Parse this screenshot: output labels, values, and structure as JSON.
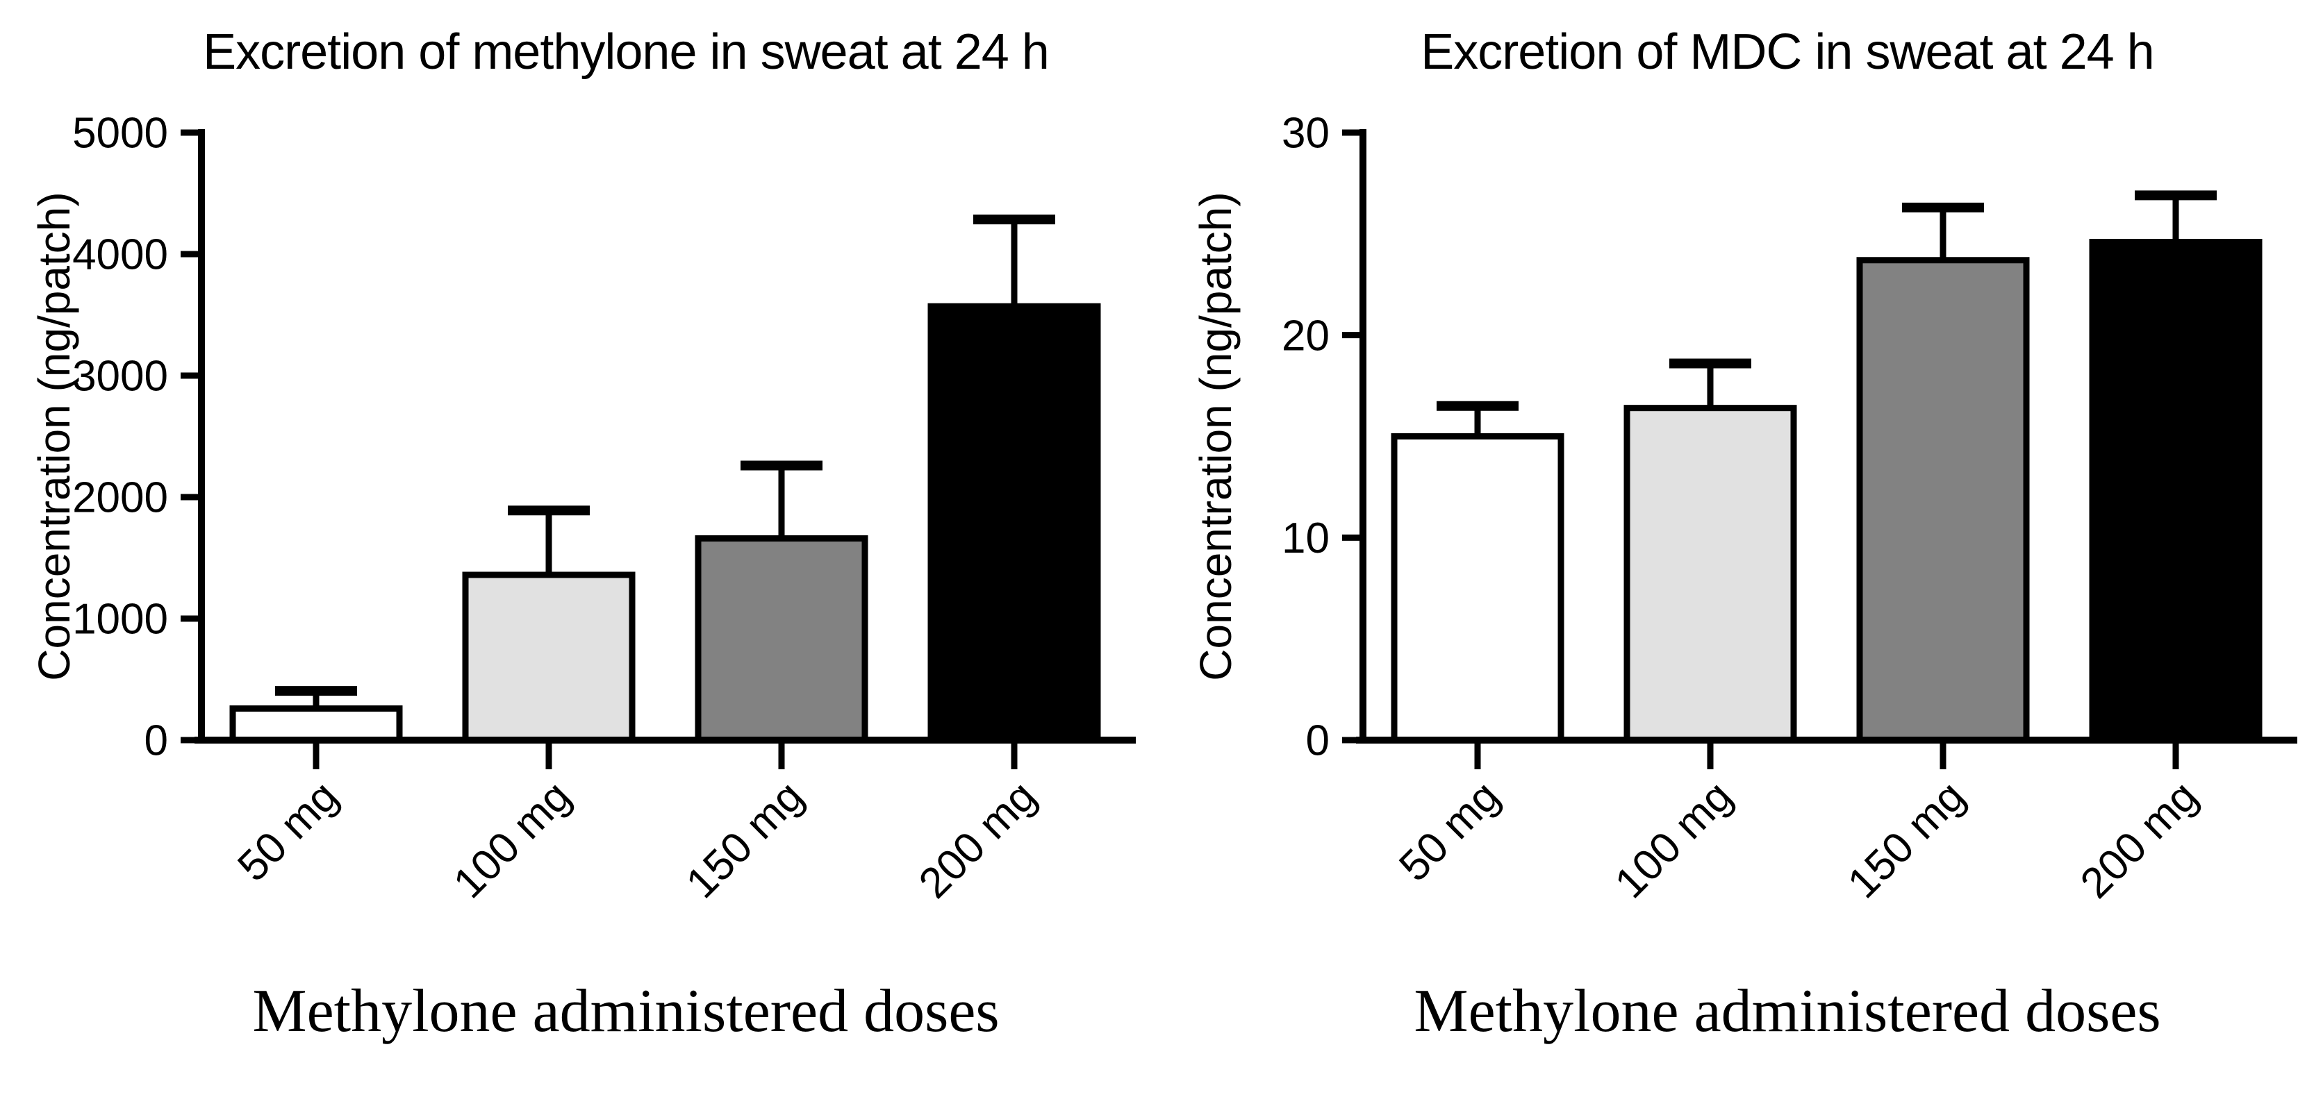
{
  "page": {
    "background": "#ffffff",
    "text_color": "#000000",
    "axis_color": "#000000"
  },
  "chart_data": [
    {
      "type": "bar",
      "title": "Excretion of methylone in sweat at 24 h",
      "ylabel": "Concentration (ng/patch)",
      "xlabel": "Methylone administered doses",
      "categories": [
        "50 mg",
        "100 mg",
        "150 mg",
        "200 mg"
      ],
      "values": [
        260,
        1360,
        1660,
        3570
      ],
      "error_sd_up": [
        145,
        530,
        600,
        715
      ],
      "bar_fill_colors": [
        "#ffffff",
        "#e1e1e1",
        "#828282",
        "#000000"
      ],
      "bar_border_color": "#000000",
      "ylim": [
        0,
        5000
      ],
      "yticks": [
        0,
        1000,
        2000,
        3000,
        4000,
        5000
      ],
      "grid": "off",
      "legend": "none",
      "error_bars": "sd-upper-only",
      "x_tick_label_rotation_deg": -45
    },
    {
      "type": "bar",
      "title": "Excretion of MDC in sweat at 24 h",
      "ylabel": "Concentration (ng/patch)",
      "xlabel": "Methylone administered doses",
      "categories": [
        "50 mg",
        "100 mg",
        "150 mg",
        "200 mg"
      ],
      "values": [
        15.0,
        16.4,
        23.7,
        24.6
      ],
      "error_sd_up": [
        1.5,
        2.2,
        2.6,
        2.3
      ],
      "bar_fill_colors": [
        "#ffffff",
        "#e1e1e1",
        "#828282",
        "#000000"
      ],
      "bar_border_color": "#000000",
      "ylim": [
        0,
        30
      ],
      "yticks": [
        0,
        10,
        20,
        30
      ],
      "grid": "off",
      "legend": "none",
      "error_bars": "sd-upper-only",
      "x_tick_label_rotation_deg": -45
    }
  ]
}
